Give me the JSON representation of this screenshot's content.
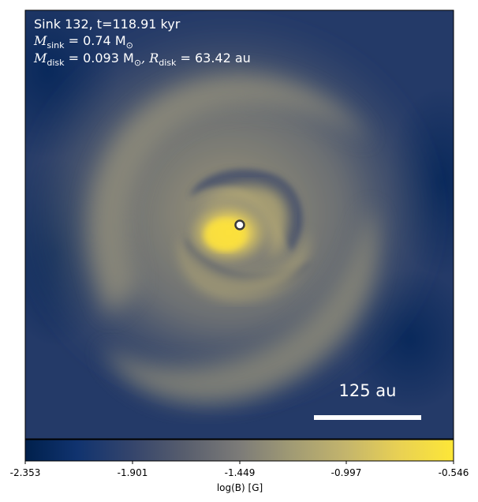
{
  "panel": {
    "sink_line": "Sink 132, t=118.91 kyr",
    "msink_symbol": "M",
    "msink_sub": "sink",
    "msink_value": " = 0.74 M",
    "msink_sun": "⊙",
    "mdisk_symbol": "M",
    "mdisk_sub": "disk",
    "mdisk_value": " = 0.093 M",
    "mdisk_sun": "⊙",
    "rdisk_symbol": ", R",
    "rdisk_sub": "disk",
    "rdisk_value": " = 63.42 au"
  },
  "scale_bar": {
    "label": "125 au"
  },
  "colorbar": {
    "label": "log(B) [G]",
    "ticks": [
      "-2.353",
      "-1.901",
      "-1.449",
      "-0.997",
      "-0.546"
    ],
    "min": -2.353,
    "max": -0.546,
    "colormap": "cividis"
  },
  "colors": {
    "low": "#00204c",
    "mid": "#7c7b78",
    "high": "#fde737",
    "sink_marker": "#ffffff"
  }
}
